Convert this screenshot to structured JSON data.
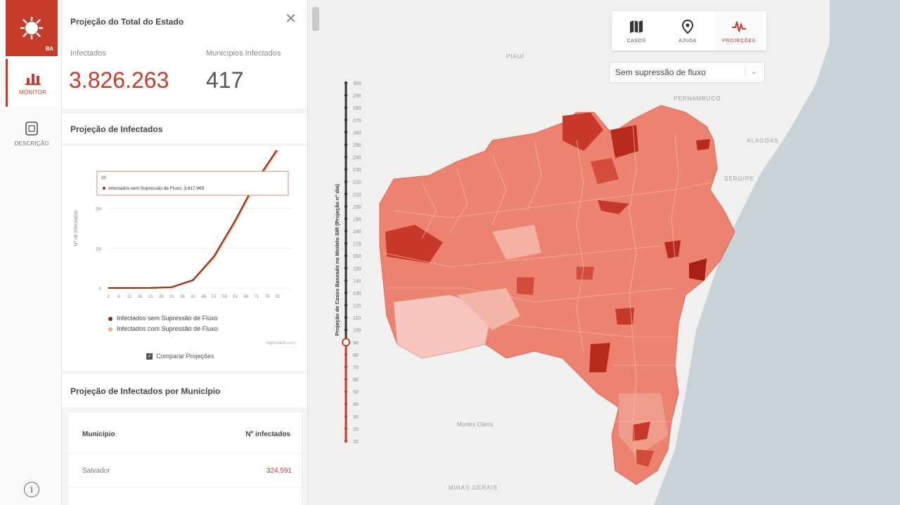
{
  "nav": {
    "monitor_label": "MONITOR",
    "description_label": "DESCRIÇÃO"
  },
  "panel": {
    "title": "Projeção do Total do Estado",
    "stats": {
      "infected_label": "Infectados",
      "infected_value": "3.826.263",
      "municipalities_label": "Municípios Infectados",
      "municipalities_value": "417"
    },
    "projection": {
      "title": "Projeção de Infectados",
      "tooltip_header": "88",
      "tooltip_text": "Infectados sem Supressão de Fluxo: 3.817.969",
      "y_axis_label": "Nº de infectados",
      "legend": [
        {
          "label": "Infectados sem Supressão de Fluxo",
          "color": "#8b2a1a"
        },
        {
          "label": "Infectados com Supressão de Fluxo",
          "color": "#f0b27a"
        }
      ],
      "credit": "Highcharts.com",
      "compare_label": "Comparar Projeções"
    },
    "municipality": {
      "title": "Projeção de Infectados por Município",
      "col_municipio": "Município",
      "col_infectados": "Nº infectados",
      "rows": [
        {
          "name": "Salvador",
          "value": "324.591"
        }
      ]
    }
  },
  "toolbar": {
    "casos": "CASOS",
    "ajuda": "AJUDA",
    "projecoes": "PROJEÇÕES",
    "accent": "#c63b2a"
  },
  "select": {
    "value": "Sem supressão de fluxo"
  },
  "timeline": {
    "title": "Projeção de Casos Baseado no Modelo SIR (Projeção n° dia)",
    "days": [
      "300",
      "290",
      "280",
      "270",
      "260",
      "250",
      "240",
      "230",
      "220",
      "210",
      "200",
      "190",
      "180",
      "170",
      "160",
      "150",
      "140",
      "130",
      "120",
      "110",
      "100",
      "90",
      "80",
      "70",
      "60",
      "50",
      "40",
      "30",
      "20",
      "10"
    ]
  },
  "map_labels": {
    "pernambuco": "PERNAMBUCO",
    "alagoas": "ALAGOAS",
    "sergipe": "SERGIPE",
    "minas_gerais": "MINAS GERAIS",
    "piaui": "PIAUÍ",
    "montes_claros": "Montes Claros"
  },
  "chart_data": {
    "type": "line",
    "title": "",
    "xlabel": "",
    "ylabel": "Nº de infectados",
    "x": [
      1,
      11,
      21,
      31,
      41,
      51,
      61,
      71,
      81,
      88
    ],
    "x_ticks": [
      "1",
      "6",
      "11",
      "16",
      "21",
      "26",
      "31",
      "36",
      "41",
      "46",
      "51",
      "56",
      "61",
      "66",
      "71",
      "76",
      "81"
    ],
    "y_ticks": [
      "0",
      "1M",
      "2M"
    ],
    "ylim": [
      0,
      3000000
    ],
    "series": [
      {
        "name": "Infectados sem Supressão de Fluxo",
        "values": [
          0,
          0,
          2000,
          20000,
          200000,
          800000,
          1700000,
          2700000,
          3500000,
          3817969
        ]
      },
      {
        "name": "Infectados com Supressão de Fluxo",
        "values": [
          0,
          0,
          1800,
          18000,
          180000,
          760000,
          1650000,
          2650000,
          3450000,
          3780000
        ]
      }
    ],
    "legend_position": "bottom"
  }
}
